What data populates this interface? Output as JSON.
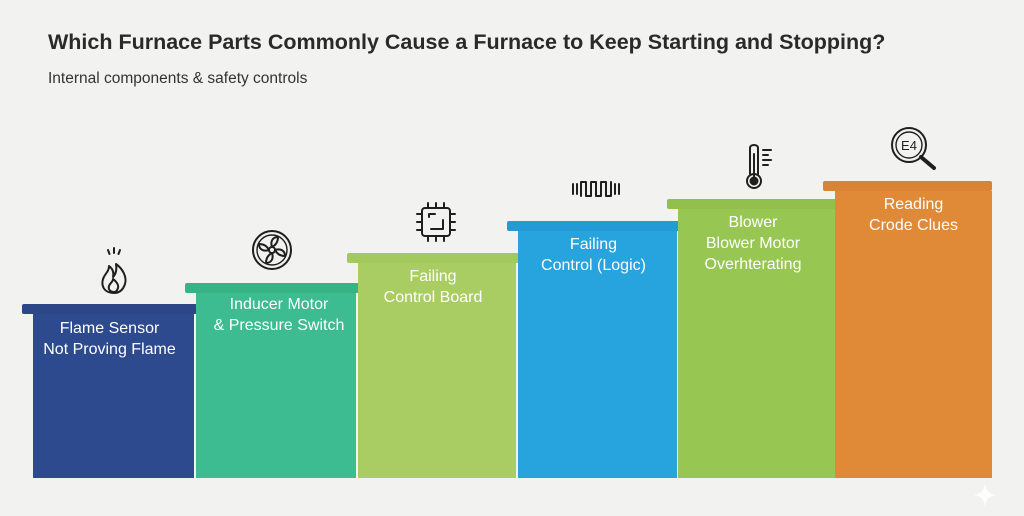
{
  "title": "Which Furnace Parts Commonly Cause a Furnace to Keep Starting and Stopping?",
  "subtitle": "Internal components & safety controls",
  "steps": [
    {
      "line1": "Flame Sensor",
      "line2": "Not Proving Flame",
      "icon": "flame-icon",
      "color": "#2e4a8e"
    },
    {
      "line1": "Inducer Motor",
      "line2": "& Pressure Switch",
      "icon": "fan-icon",
      "color": "#3cbc90"
    },
    {
      "line1": "Failing",
      "line2": "Control Board",
      "icon": "circuit-chip-icon",
      "color": "#a9cd63"
    },
    {
      "line1": "Failing",
      "line2": "Control (Logic)",
      "icon": "signal-wave-icon",
      "color": "#27a3de"
    },
    {
      "line1": "Blower",
      "line2": "Blower Motor",
      "line3": "Overhterating",
      "icon": "thermometer-icon",
      "color": "#97c752"
    },
    {
      "line1": "Reading",
      "line2": "Crode Clues",
      "icon": "error-code-magnifier-icon",
      "icon_text": "E4",
      "color": "#e08a38"
    }
  ]
}
